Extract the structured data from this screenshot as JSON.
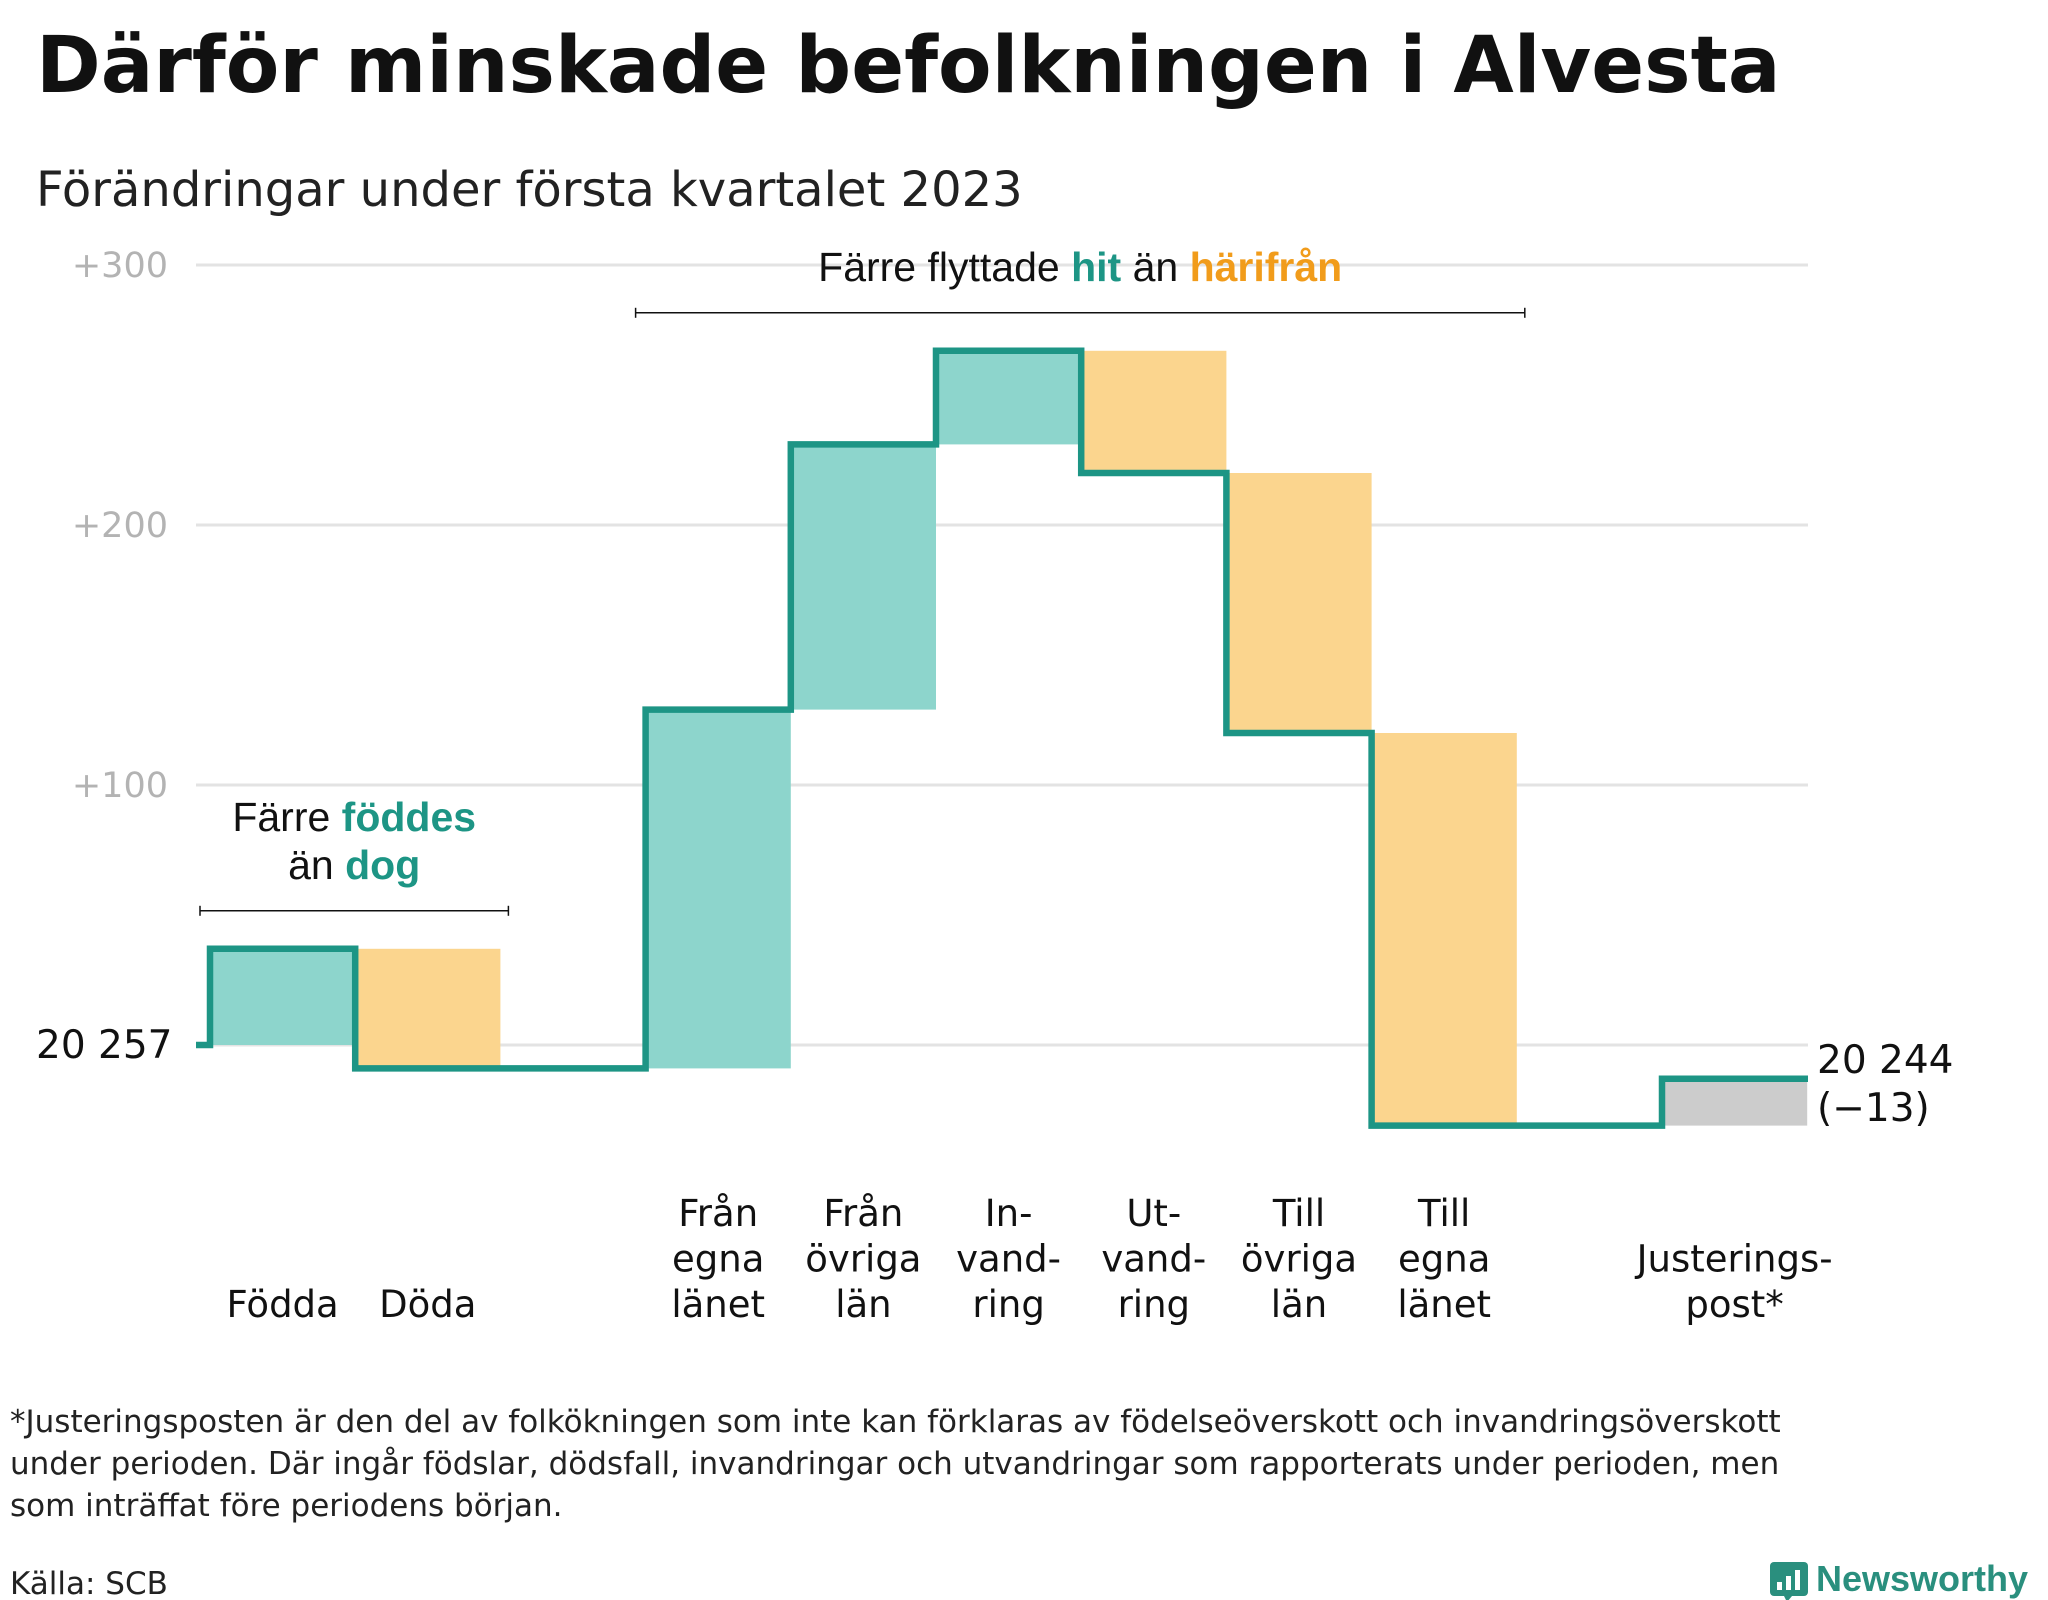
{
  "colors": {
    "increase_fill": "#8dd5cc",
    "decrease_fill": "#fbd58e",
    "adjustment_fill": "#cccccc",
    "line": "#1d9585",
    "grid": "#e3e3e3",
    "teal_text": "#1d9585",
    "orange_text": "#f19c1b"
  },
  "source": "Källa: SCB",
  "logo": {
    "text": "Newsworthy",
    "icon": "newsworthy-logo-icon"
  },
  "footnote_lines": [
    "*Justeringsposten är den del av folkökningen som inte kan förklaras av födelseöverskott och invandringsöverskott",
    "under perioden. Där ingår födslar, dödsfall, invandringar och utvandringar som rapporterats under perioden, men",
    "som inträffat före periodens början."
  ],
  "chart_data": {
    "type": "waterfall",
    "title": "Därför minskade befolkningen i Alvesta",
    "subtitle": "Förändringar under första kvartalet 2023",
    "start_value": 20257,
    "start_label": "20 257",
    "end_value": 20244,
    "end_label": "20 244",
    "end_change_label": "(−13)",
    "ylim": [
      -40,
      300
    ],
    "yticks": [
      {
        "value": 100,
        "label": "+100"
      },
      {
        "value": 200,
        "label": "+200"
      },
      {
        "value": 300,
        "label": "+300"
      }
    ],
    "grid": true,
    "steps": [
      {
        "lines": [
          "Födda"
        ],
        "delta": 37,
        "kind": "increase"
      },
      {
        "lines": [
          "Döda"
        ],
        "delta": -46,
        "kind": "decrease"
      },
      {
        "lines": [],
        "delta": 0,
        "kind": "gap"
      },
      {
        "lines": [
          "Från",
          "egna",
          "länet"
        ],
        "delta": 138,
        "kind": "increase"
      },
      {
        "lines": [
          "Från",
          "övriga",
          "län"
        ],
        "delta": 102,
        "kind": "increase"
      },
      {
        "lines": [
          "In-",
          "vand-",
          "ring"
        ],
        "delta": 36,
        "kind": "increase"
      },
      {
        "lines": [
          "Ut-",
          "vand-",
          "ring"
        ],
        "delta": -47,
        "kind": "decrease"
      },
      {
        "lines": [
          "Till",
          "övriga",
          "län"
        ],
        "delta": -100,
        "kind": "decrease"
      },
      {
        "lines": [
          "Till",
          "egna",
          "länet"
        ],
        "delta": -151,
        "kind": "decrease"
      },
      {
        "lines": [],
        "delta": 0,
        "kind": "gap"
      },
      {
        "lines": [
          "Justerings-",
          "post*"
        ],
        "delta": 18,
        "kind": "adjustment"
      }
    ],
    "annotations": [
      {
        "first_step": 0,
        "last_step": 1,
        "lines": [
          [
            "Färre ",
            "föddes"
          ],
          [
            "än ",
            "dog"
          ]
        ]
      },
      {
        "first_step": 3,
        "last_step": 8,
        "lines": [
          [
            "Färre flyttade ",
            "hit",
            " än ",
            "härifrån"
          ]
        ]
      }
    ]
  }
}
